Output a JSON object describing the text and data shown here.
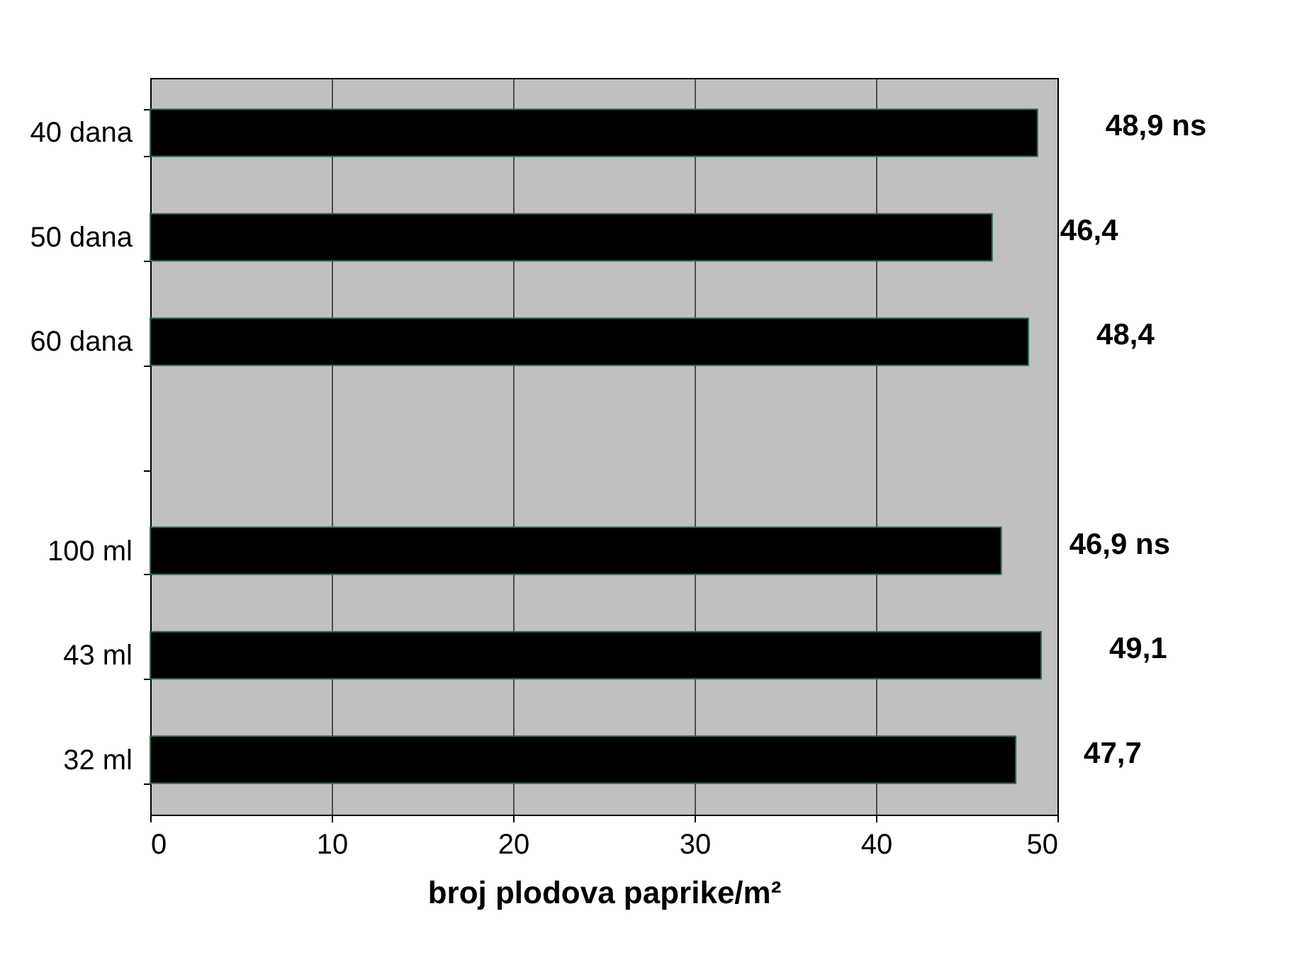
{
  "chart_data": {
    "type": "bar",
    "orientation": "horizontal",
    "categories": [
      "40 dana",
      "50 dana",
      "60 dana",
      null,
      "100 ml",
      "43 ml",
      "32 ml"
    ],
    "values": [
      48.9,
      46.4,
      48.4,
      null,
      46.9,
      49.1,
      47.7
    ],
    "value_labels": [
      "48,9 ns",
      "46,4",
      "48,4",
      null,
      "46,9 ns",
      "49,1",
      "47,7"
    ],
    "color": "#000000",
    "xlabel": "broj plodova paprike/m²",
    "xlim": [
      0,
      50
    ],
    "xticks": [
      0,
      10,
      20,
      30,
      40,
      50
    ],
    "grid": "x"
  }
}
